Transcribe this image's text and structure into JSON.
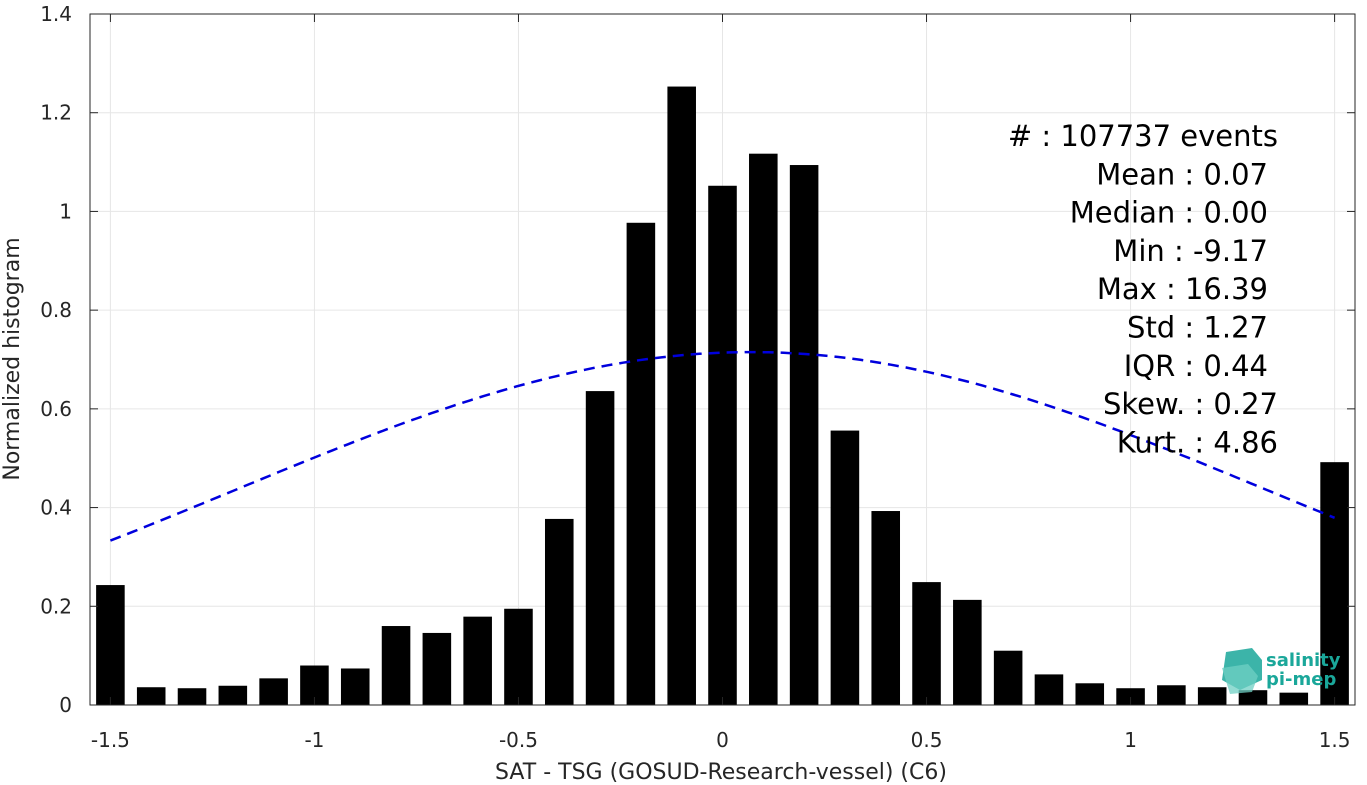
{
  "chart_data": {
    "type": "bar",
    "xlabel": "SAT - TSG (GOSUD-Research-vessel) (C6)",
    "ylabel": "Normalized histogram",
    "xlim": [
      -1.55,
      1.55
    ],
    "ylim": [
      0,
      1.4
    ],
    "grid": true,
    "x_ticks": [
      -1.5,
      -1,
      -0.5,
      0,
      0.5,
      1,
      1.5
    ],
    "x_tick_labels": [
      "-1.5",
      "-1",
      "-0.5",
      "0",
      "0.5",
      "1",
      "1.5"
    ],
    "y_ticks": [
      0,
      0.2,
      0.4,
      0.6,
      0.8,
      1,
      1.2,
      1.4
    ],
    "y_tick_labels": [
      "0",
      "0.2",
      "0.4",
      "0.6",
      "0.8",
      "1",
      "1.2",
      "1.4"
    ],
    "bar_width": 0.07,
    "bar_color": "#000000",
    "x": [
      -1.5,
      -1.4,
      -1.3,
      -1.2,
      -1.1,
      -1.0,
      -0.9,
      -0.8,
      -0.7,
      -0.6,
      -0.5,
      -0.4,
      -0.3,
      -0.2,
      -0.1,
      0.0,
      0.1,
      0.2,
      0.3,
      0.4,
      0.5,
      0.6,
      0.7,
      0.8,
      0.9,
      1.0,
      1.1,
      1.2,
      1.3,
      1.4,
      1.5
    ],
    "values": [
      0.243,
      0.036,
      0.034,
      0.039,
      0.054,
      0.08,
      0.074,
      0.16,
      0.146,
      0.179,
      0.195,
      0.377,
      0.636,
      0.977,
      1.253,
      1.052,
      1.117,
      1.094,
      0.556,
      0.393,
      0.249,
      0.213,
      0.11,
      0.062,
      0.044,
      0.034,
      0.04,
      0.036,
      0.03,
      0.025,
      0.492
    ],
    "fit_curve": {
      "type": "gaussian",
      "mean": 0.07,
      "std": 1.27,
      "peak": 0.715,
      "x_range": [
        -1.5,
        1.5
      ],
      "color": "#0000dd",
      "style": "dashed"
    },
    "annotations": [
      "#  : 107737 events",
      "Mean : 0.07",
      "Median : 0.00",
      "Min : -9.17",
      "Max : 16.39",
      "Std : 1.27",
      "IQR : 0.44",
      "Skew. : 0.27",
      "Kurt. : 4.86"
    ]
  },
  "logo": {
    "line1": "salinity",
    "line2": "pi-mep"
  }
}
